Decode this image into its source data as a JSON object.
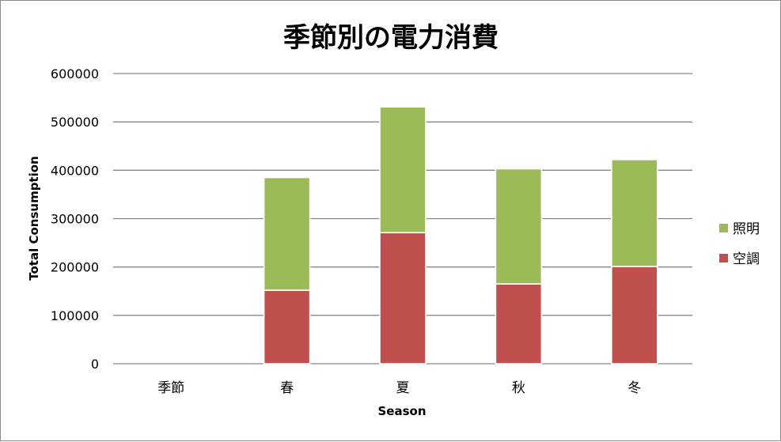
{
  "chart_data": {
    "type": "bar",
    "stacked": true,
    "title": "季節別の電力消費",
    "xlabel": "Season",
    "ylabel": "Total Consumption",
    "categories": [
      "季節",
      "春",
      "夏",
      "秋",
      "冬"
    ],
    "ylim": [
      0,
      600000
    ],
    "yticks": [
      "0",
      "100000",
      "200000",
      "300000",
      "400000",
      "500000",
      "600000"
    ],
    "grid": true,
    "legend_position": "right",
    "series": [
      {
        "name": "空調",
        "color": "#c0504d",
        "values": [
          0,
          152000,
          271000,
          165000,
          201000
        ]
      },
      {
        "name": "照明",
        "color": "#9bbb59",
        "values": [
          0,
          233000,
          260000,
          238000,
          221000
        ]
      }
    ],
    "legend_order": [
      "照明",
      "空調"
    ]
  }
}
